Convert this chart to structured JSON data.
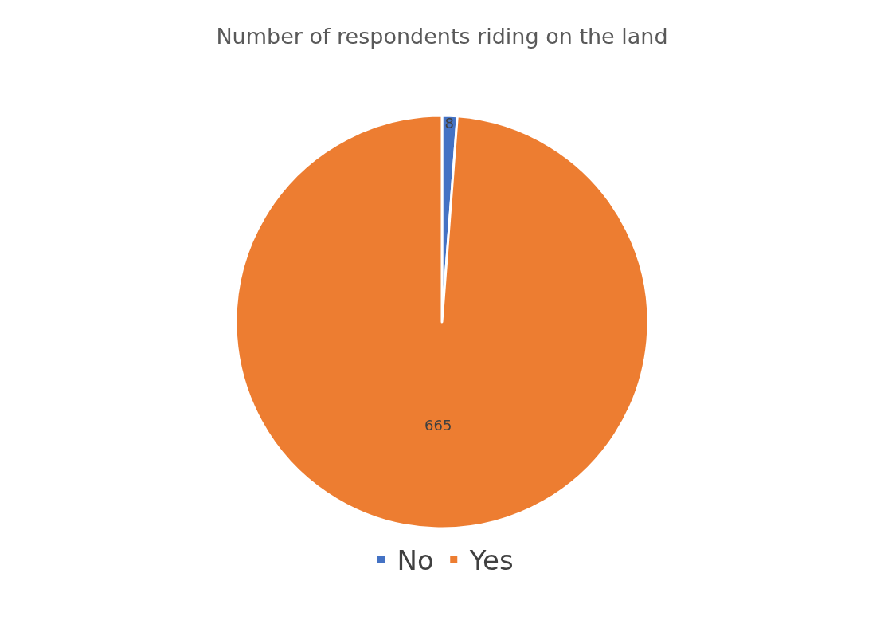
{
  "chart_data": {
    "type": "pie",
    "title": "Number of respondents riding on the land",
    "categories": [
      "No",
      "Yes"
    ],
    "values": [
      8,
      665
    ],
    "colors": [
      "#4472c4",
      "#ed7d31"
    ],
    "data_labels": true,
    "legend": "bottom"
  }
}
